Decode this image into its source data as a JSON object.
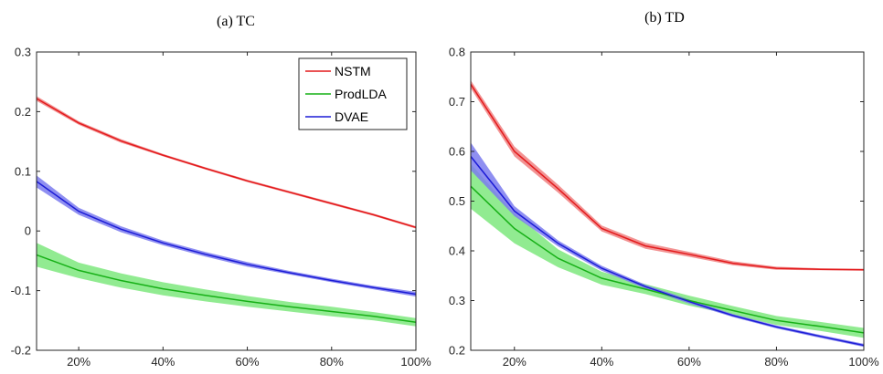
{
  "chart_data": [
    {
      "type": "line",
      "title": "(a) TC",
      "xlabel": "",
      "ylabel": "",
      "x": [
        10,
        20,
        30,
        40,
        50,
        60,
        70,
        80,
        90,
        100
      ],
      "xlim": [
        10,
        100
      ],
      "xticks": [
        20,
        40,
        60,
        80,
        100
      ],
      "xtick_labels": [
        "20%",
        "40%",
        "60%",
        "80%",
        "100%"
      ],
      "ylim": [
        -0.2,
        0.3
      ],
      "yticks": [
        -0.2,
        -0.1,
        0,
        0.1,
        0.2,
        0.3
      ],
      "ytick_labels": [
        "-0.2",
        "-0.1",
        "0",
        "0.1",
        "0.2",
        "0.3"
      ],
      "grid": false,
      "legend": {
        "placement": "top-right",
        "entries": [
          "NSTM",
          "ProdLDA",
          "DVAE"
        ]
      },
      "series": [
        {
          "name": "NSTM",
          "color": "#e31a1c",
          "band": "#f08080",
          "values": [
            0.222,
            0.181,
            0.151,
            0.127,
            0.105,
            0.084,
            0.065,
            0.046,
            0.027,
            0.006
          ],
          "spread": [
            0.004,
            0.003,
            0.003,
            0.002,
            0.002,
            0.002,
            0.002,
            0.002,
            0.002,
            0.002
          ]
        },
        {
          "name": "ProdLDA",
          "color": "#17b017",
          "band": "#7ee87e",
          "values": [
            -0.04,
            -0.066,
            -0.083,
            -0.097,
            -0.108,
            -0.118,
            -0.127,
            -0.135,
            -0.143,
            -0.153
          ],
          "spread": [
            0.02,
            0.013,
            0.012,
            0.011,
            0.01,
            0.009,
            0.008,
            0.008,
            0.007,
            0.007
          ]
        },
        {
          "name": "DVAE",
          "color": "#1c1cd6",
          "band": "#7b7bef",
          "values": [
            0.083,
            0.033,
            0.003,
            -0.02,
            -0.039,
            -0.056,
            -0.07,
            -0.083,
            -0.095,
            -0.106
          ],
          "spread": [
            0.01,
            0.006,
            0.005,
            0.004,
            0.004,
            0.004,
            0.003,
            0.003,
            0.003,
            0.004
          ]
        }
      ]
    },
    {
      "type": "line",
      "title": "(b) TD",
      "xlabel": "",
      "ylabel": "",
      "x": [
        10,
        20,
        30,
        40,
        50,
        60,
        70,
        80,
        90,
        100
      ],
      "xlim": [
        10,
        100
      ],
      "xticks": [
        20,
        40,
        60,
        80,
        100
      ],
      "xtick_labels": [
        "20%",
        "40%",
        "60%",
        "80%",
        "100%"
      ],
      "ylim": [
        0.2,
        0.8
      ],
      "yticks": [
        0.2,
        0.3,
        0.4,
        0.5,
        0.6,
        0.7,
        0.8
      ],
      "ytick_labels": [
        "0.2",
        "0.3",
        "0.4",
        "0.5",
        "0.6",
        "0.7",
        "0.8"
      ],
      "grid": false,
      "series": [
        {
          "name": "NSTM",
          "color": "#e31a1c",
          "band": "#f08080",
          "values": [
            0.735,
            0.6,
            0.525,
            0.445,
            0.41,
            0.393,
            0.375,
            0.365,
            0.363,
            0.362
          ],
          "spread": [
            0.008,
            0.01,
            0.008,
            0.006,
            0.006,
            0.005,
            0.004,
            0.003,
            0.002,
            0.002
          ]
        },
        {
          "name": "ProdLDA",
          "color": "#17b017",
          "band": "#7ee87e",
          "values": [
            0.53,
            0.445,
            0.385,
            0.345,
            0.323,
            0.3,
            0.28,
            0.26,
            0.248,
            0.235
          ],
          "spread": [
            0.045,
            0.03,
            0.018,
            0.013,
            0.01,
            0.01,
            0.009,
            0.009,
            0.009,
            0.01
          ]
        },
        {
          "name": "DVAE",
          "color": "#1c1cd6",
          "band": "#7b7bef",
          "values": [
            0.59,
            0.48,
            0.415,
            0.365,
            0.328,
            0.298,
            0.27,
            0.247,
            0.228,
            0.21
          ],
          "spread": [
            0.028,
            0.01,
            0.006,
            0.005,
            0.004,
            0.004,
            0.003,
            0.003,
            0.003,
            0.003
          ]
        }
      ]
    }
  ]
}
